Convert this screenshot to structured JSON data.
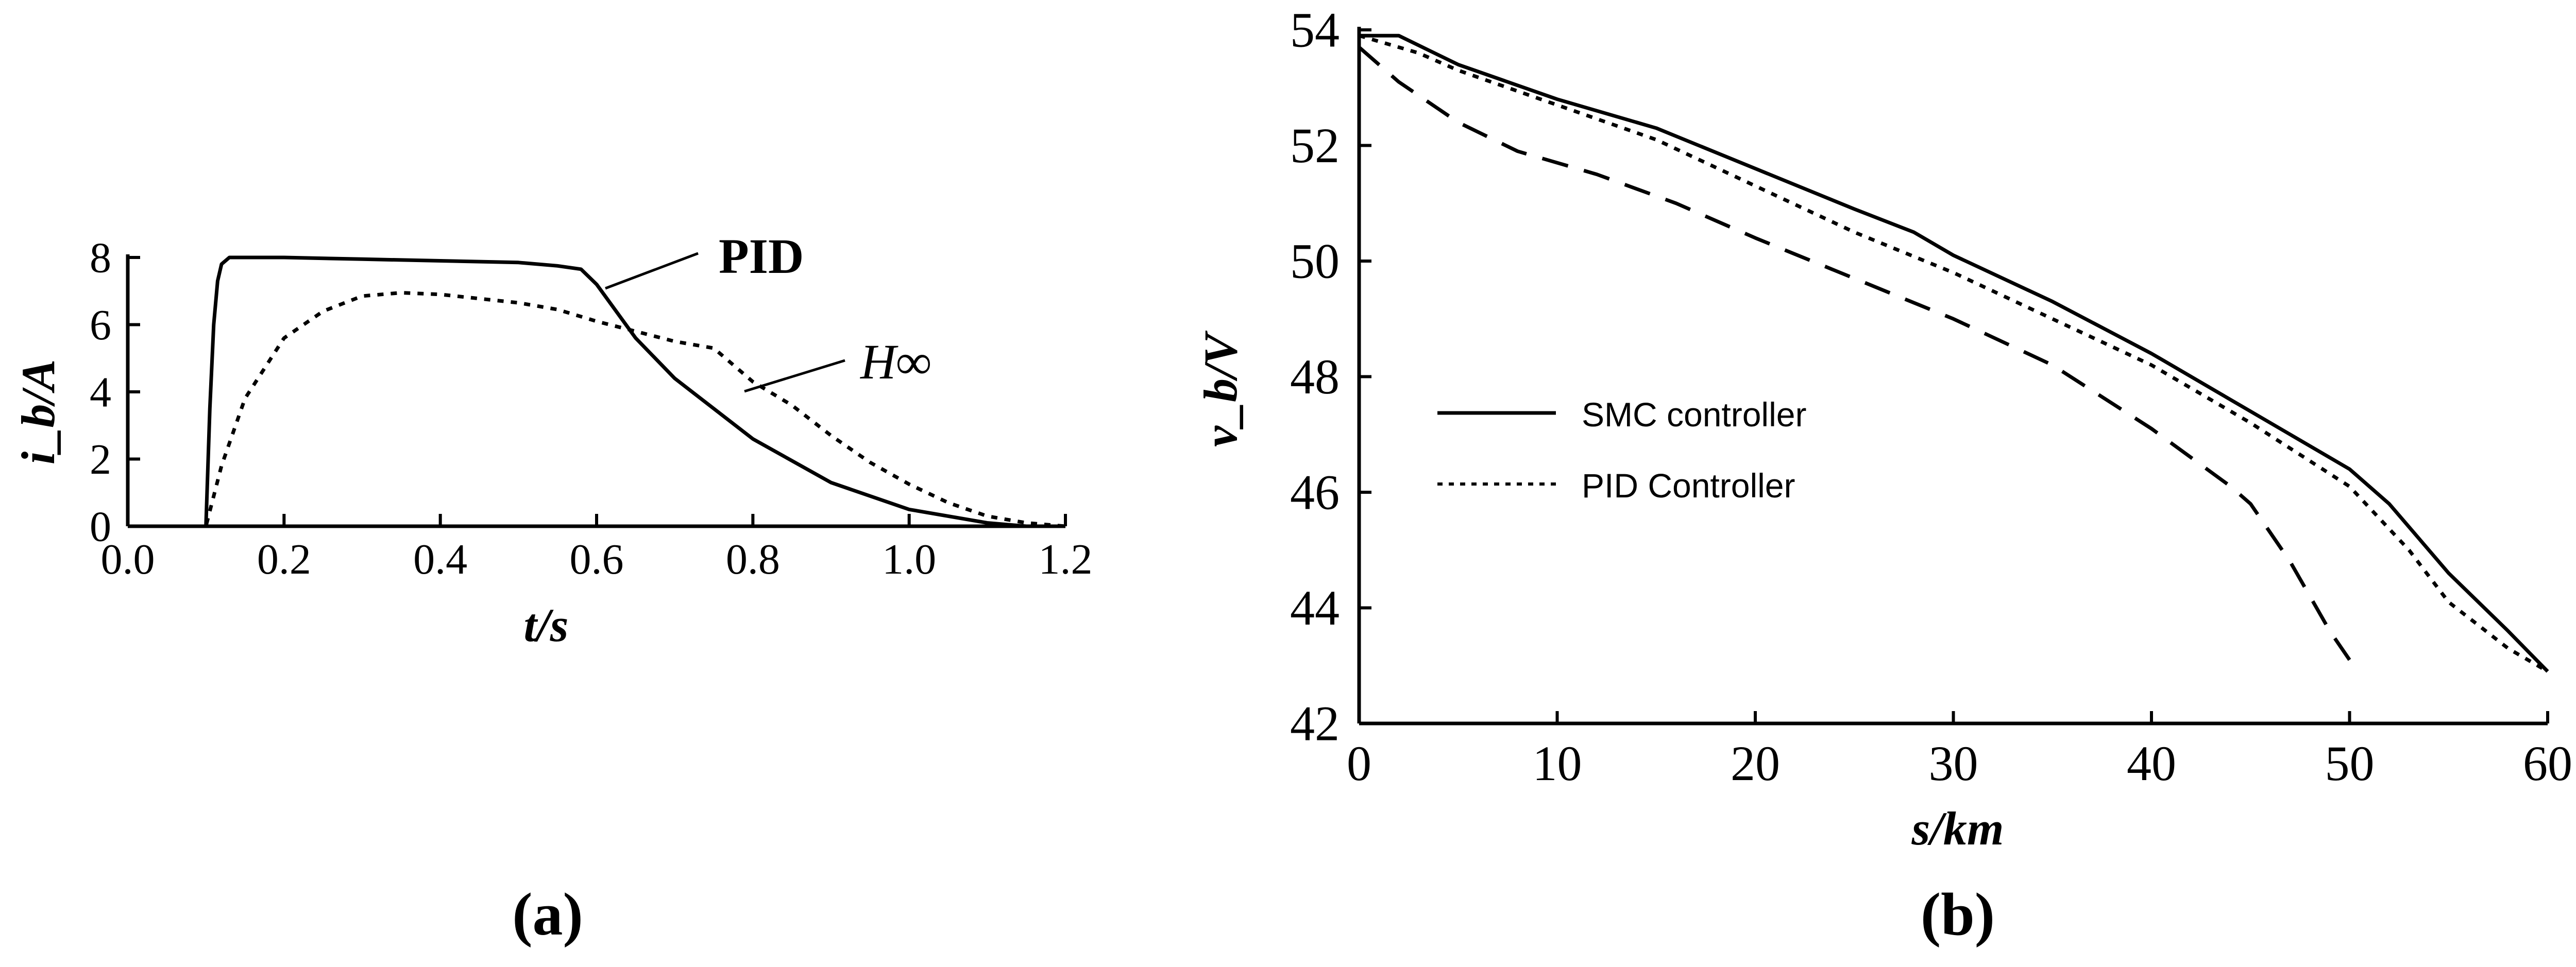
{
  "chart_data": [
    {
      "type": "line",
      "panel_label": "(a)",
      "xlabel": "t/s",
      "ylabel": "i_b/A",
      "xlim": [
        0.0,
        1.2
      ],
      "ylim": [
        0,
        8
      ],
      "xticks": [
        0.0,
        0.2,
        0.4,
        0.6,
        0.8,
        1.0,
        1.2
      ],
      "xtick_labels": [
        "0.0",
        "0.2",
        "0.4",
        "0.6",
        "0.8",
        "1.0",
        "1.2"
      ],
      "yticks": [
        0,
        2,
        4,
        6,
        8
      ],
      "ytick_labels": [
        "0",
        "2",
        "4",
        "6",
        "8"
      ],
      "grid": false,
      "annotations": [
        "PID",
        "H∞"
      ],
      "series": [
        {
          "name": "PID",
          "style": "solid",
          "x": [
            0.0,
            0.1,
            0.105,
            0.11,
            0.115,
            0.12,
            0.13,
            0.2,
            0.3,
            0.4,
            0.5,
            0.55,
            0.58,
            0.6,
            0.65,
            0.7,
            0.8,
            0.9,
            1.0,
            1.1,
            1.15
          ],
          "y": [
            0.0,
            0.0,
            3.5,
            6.0,
            7.3,
            7.8,
            8.0,
            8.0,
            7.95,
            7.9,
            7.85,
            7.75,
            7.65,
            7.2,
            5.6,
            4.4,
            2.6,
            1.3,
            0.5,
            0.1,
            0.0
          ]
        },
        {
          "name": "H∞",
          "style": "dotted",
          "x": [
            0.0,
            0.1,
            0.12,
            0.15,
            0.2,
            0.25,
            0.3,
            0.35,
            0.4,
            0.5,
            0.55,
            0.6,
            0.65,
            0.7,
            0.75,
            0.8,
            0.85,
            0.9,
            0.95,
            1.0,
            1.05,
            1.1,
            1.15,
            1.2
          ],
          "y": [
            0.0,
            0.0,
            1.8,
            3.8,
            5.6,
            6.4,
            6.85,
            6.95,
            6.9,
            6.65,
            6.45,
            6.1,
            5.8,
            5.5,
            5.3,
            4.3,
            3.6,
            2.7,
            1.9,
            1.25,
            0.7,
            0.3,
            0.1,
            0.0
          ]
        }
      ]
    },
    {
      "type": "line",
      "panel_label": "(b)",
      "xlabel": "s/km",
      "ylabel": "v_b/V",
      "xlim": [
        0,
        60
      ],
      "ylim": [
        42,
        54
      ],
      "xticks": [
        0,
        10,
        20,
        30,
        40,
        50,
        60
      ],
      "xtick_labels": [
        "0",
        "10",
        "20",
        "30",
        "40",
        "50",
        "60"
      ],
      "yticks": [
        42,
        44,
        46,
        48,
        50,
        52,
        54
      ],
      "ytick_labels": [
        "42",
        "44",
        "46",
        "48",
        "50",
        "52",
        "54"
      ],
      "grid": false,
      "legend_position": "center-left",
      "legend": [
        "SMC controller",
        "PID Controller"
      ],
      "series": [
        {
          "name": "SMC controller",
          "style": "solid",
          "x": [
            0,
            2,
            5,
            10,
            15,
            20,
            25,
            28,
            30,
            35,
            40,
            45,
            50,
            52,
            55,
            58,
            60
          ],
          "y": [
            53.9,
            53.9,
            53.4,
            52.8,
            52.3,
            51.6,
            50.9,
            50.5,
            50.1,
            49.3,
            48.4,
            47.4,
            46.4,
            45.8,
            44.6,
            43.6,
            42.9
          ]
        },
        {
          "name": "PID Controller",
          "style": "dotted",
          "x": [
            0,
            3,
            5,
            10,
            15,
            20,
            25,
            30,
            35,
            40,
            45,
            50,
            53,
            55,
            58,
            60
          ],
          "y": [
            53.9,
            53.6,
            53.3,
            52.7,
            52.1,
            51.3,
            50.5,
            49.8,
            49.0,
            48.2,
            47.2,
            46.1,
            45.0,
            44.1,
            43.3,
            42.9
          ]
        },
        {
          "name": "",
          "style": "dashed",
          "x": [
            0,
            2,
            5,
            8,
            12,
            16,
            20,
            25,
            30,
            35,
            40,
            44,
            45,
            47,
            49,
            50
          ],
          "y": [
            53.7,
            53.1,
            52.4,
            51.9,
            51.5,
            51.0,
            50.4,
            49.7,
            49.0,
            48.2,
            47.1,
            46.1,
            45.8,
            44.8,
            43.6,
            43.1
          ]
        }
      ]
    }
  ]
}
